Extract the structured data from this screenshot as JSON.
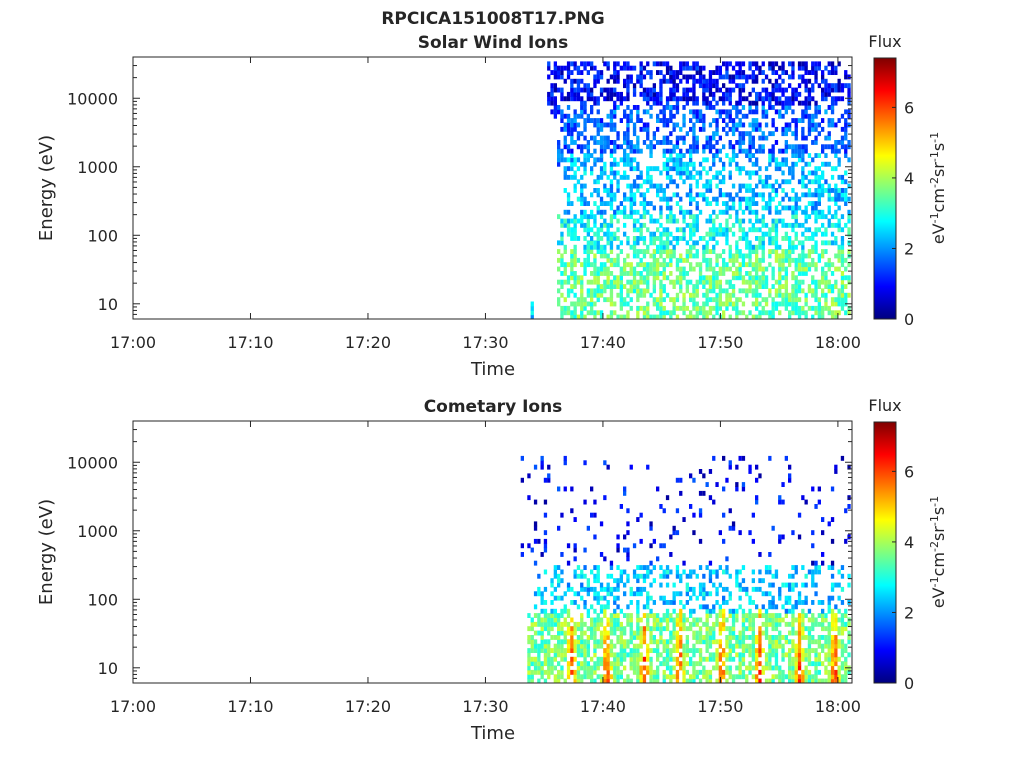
{
  "figure_title": "RPCICA151008T17.PNG",
  "colormap": [
    "#00007f",
    "#0000ff",
    "#007fff",
    "#00ffff",
    "#7fff7f",
    "#ffff00",
    "#ff7f00",
    "#ff0000",
    "#7f0000"
  ],
  "chart_data": [
    {
      "type": "heatmap",
      "title": "Solar Wind Ions",
      "xlabel": "Time",
      "ylabel": "Energy (eV)",
      "yscale": "log",
      "x_tick_labels": [
        "17:00",
        "17:10",
        "17:20",
        "17:30",
        "17:40",
        "17:50",
        "18:00"
      ],
      "x_tick_minutes": [
        0,
        10,
        20,
        30,
        40,
        50,
        60
      ],
      "xlim_minutes": [
        0,
        61.2
      ],
      "y_tick_labels": [
        "10",
        "100",
        "1000",
        "10000"
      ],
      "y_tick_values": [
        10,
        100,
        1000,
        10000
      ],
      "ylim": [
        6,
        40000
      ],
      "colorbar": {
        "label": "Flux",
        "unit": "eV-1cm-2sr-1s-1",
        "range": [
          0,
          7.4
        ],
        "tick_labels": [
          "0",
          "2",
          "4",
          "6"
        ],
        "tick_values": [
          0,
          2,
          4,
          6
        ]
      },
      "data_description": "Sparse flux; onset near 17:34; blue 3-20 keV, cyan 100-3000 eV, green below 100 eV",
      "regions": [
        {
          "t": [
            33.6,
            33.9
          ],
          "e": [
            6,
            11
          ],
          "flux": 2.2,
          "density": 0.9
        },
        {
          "t": [
            35.0,
            61.0
          ],
          "e": [
            5000,
            35000
          ],
          "flux": 0.9,
          "density": 0.55
        },
        {
          "t": [
            36.0,
            61.0
          ],
          "e": [
            1000,
            8000
          ],
          "flux": 1.6,
          "density": 0.5
        },
        {
          "t": [
            36.5,
            61.0
          ],
          "e": [
            150,
            1500
          ],
          "flux": 2.3,
          "density": 0.45
        },
        {
          "t": [
            36.0,
            61.0
          ],
          "e": [
            60,
            200
          ],
          "flux": 2.8,
          "density": 0.5
        },
        {
          "t": [
            36.0,
            61.0
          ],
          "e": [
            6,
            60
          ],
          "flux": 3.5,
          "density": 0.6
        }
      ]
    },
    {
      "type": "heatmap",
      "title": "Cometary Ions",
      "xlabel": "Time",
      "ylabel": "Energy (eV)",
      "yscale": "log",
      "x_tick_labels": [
        "17:00",
        "17:10",
        "17:20",
        "17:30",
        "17:40",
        "17:50",
        "18:00"
      ],
      "x_tick_minutes": [
        0,
        10,
        20,
        30,
        40,
        50,
        60
      ],
      "xlim_minutes": [
        0,
        61.2
      ],
      "y_tick_labels": [
        "10",
        "100",
        "1000",
        "10000"
      ],
      "y_tick_values": [
        10,
        100,
        1000,
        10000
      ],
      "ylim": [
        6,
        40000
      ],
      "colorbar": {
        "label": "Flux",
        "unit": "eV-1cm-2sr-1s-1",
        "range": [
          0,
          7.4
        ],
        "tick_labels": [
          "0",
          "2",
          "4",
          "6"
        ],
        "tick_values": [
          0,
          2,
          4,
          6
        ]
      },
      "data_description": "Onset near 17:33; intense (up to ~6.5) bursts below 60 eV at roughly 3-minute intervals; sparse blue above 300 eV",
      "regions": [
        {
          "t": [
            33.0,
            61.0
          ],
          "e": [
            300,
            12000
          ],
          "flux": 0.9,
          "density": 0.07
        },
        {
          "t": [
            34.0,
            61.0
          ],
          "e": [
            60,
            300
          ],
          "flux": 2.4,
          "density": 0.35
        },
        {
          "t": [
            33.3,
            61.0
          ],
          "e": [
            6,
            60
          ],
          "flux": 3.6,
          "density": 0.7
        }
      ],
      "bursts_minutes": [
        37.2,
        40.2,
        43.4,
        46.4,
        50.0,
        53.2,
        56.6,
        59.6
      ],
      "burst_peak_flux": 6.3
    }
  ]
}
